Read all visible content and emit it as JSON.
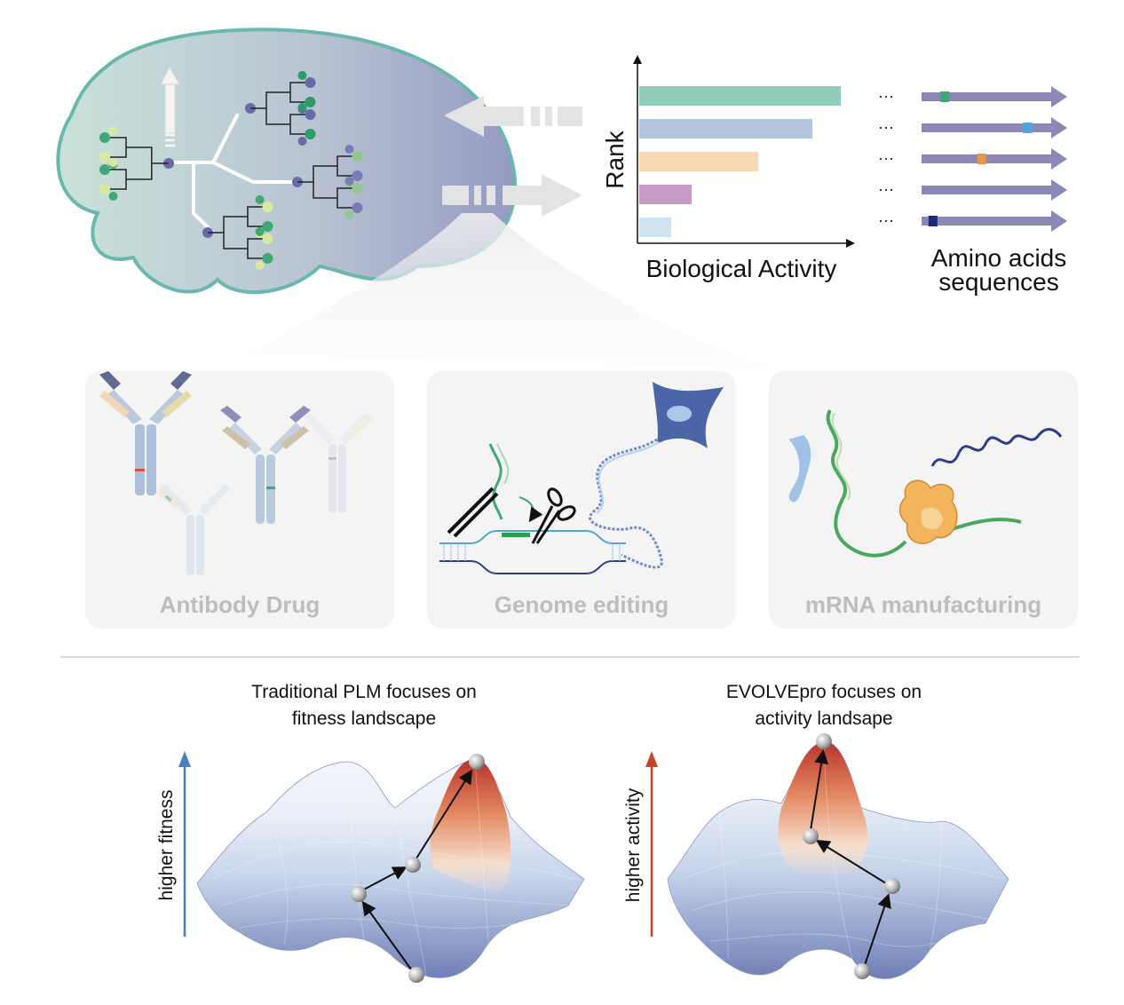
{
  "top_panel": {
    "rank_axis_label": "Rank",
    "activity_axis_label": "Biological Activity",
    "sequences_label_line1": "Amino acids",
    "sequences_label_line2": "sequences",
    "ellipsis": "···",
    "bars": [
      {
        "relative_activity": 1.0,
        "color": "#8fcdb9"
      },
      {
        "relative_activity": 0.86,
        "color": "#b3c4de"
      },
      {
        "relative_activity": 0.59,
        "color": "#f8d7b3"
      },
      {
        "relative_activity": 0.26,
        "color": "#c79ac3"
      },
      {
        "relative_activity": 0.16,
        "color": "#cfe3f1"
      }
    ],
    "sequence_color": "#8b88b8",
    "mutation_colors": [
      "#3fa874",
      "#4aa6d8",
      "#e9944a",
      "#1d2a78"
    ]
  },
  "applications": [
    {
      "title": "Antibody Drug",
      "icon": "antibody-icon"
    },
    {
      "title": "Genome editing",
      "icon": "crispr-icon"
    },
    {
      "title": "mRNA manufacturing",
      "icon": "ribosome-icon"
    }
  ],
  "landscapes": {
    "left": {
      "caption_line1": "Traditional PLM focuses on",
      "caption_line2": "fitness landscape",
      "axis_label": "higher fitness",
      "axis_color": "#4a7fc0",
      "peak_color": "#c8402a"
    },
    "right": {
      "caption_line1": "EVOLVEpro focuses on",
      "caption_line2": "activity landsape",
      "axis_label": "higher activity",
      "axis_color": "#c8452a",
      "peak_color": "#c8402a"
    }
  },
  "colors": {
    "brain_outline": "#6ab8ad",
    "panel_bg": "#f4f4f4",
    "divider": "#c8c8c8",
    "arrow_gray": "#e3e3e3"
  }
}
